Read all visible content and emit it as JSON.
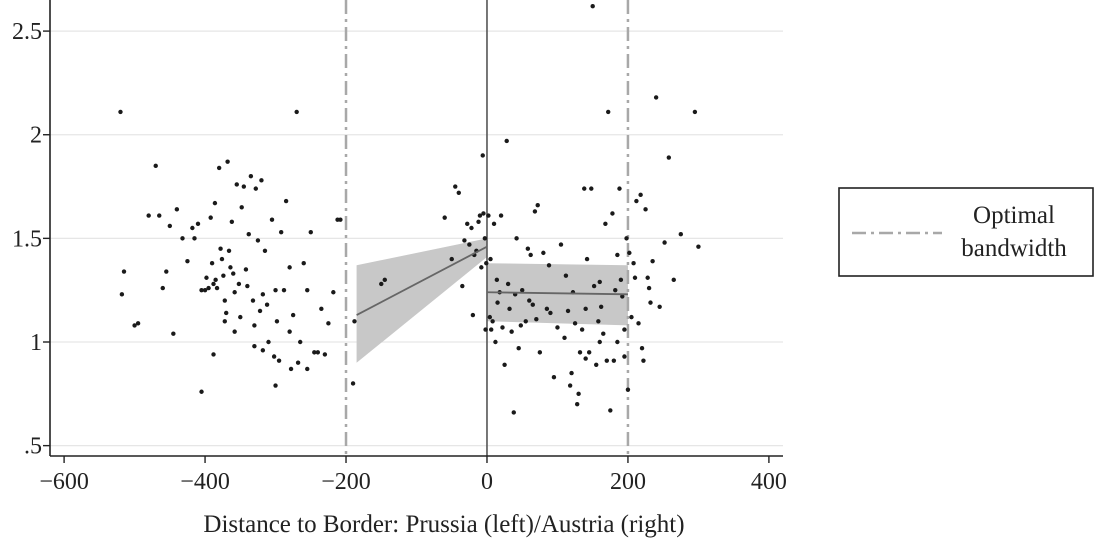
{
  "chart_data": {
    "type": "scatter",
    "title": "",
    "xlabel": "Distance to Border: Prussia (left)/Austria (right)",
    "ylabel": "",
    "xlim": [
      -620,
      420
    ],
    "ylim": [
      0.45,
      2.65
    ],
    "x_ticks": [
      -600,
      -400,
      -200,
      0,
      200,
      400
    ],
    "x_tick_labels": [
      "−600",
      "−400",
      "−200",
      "0",
      "200",
      "400"
    ],
    "y_ticks": [
      0.5,
      1,
      1.5,
      2,
      2.5
    ],
    "y_tick_labels": [
      ".5",
      "1",
      "1.5",
      "2",
      "2.5"
    ],
    "grid": "horizontal",
    "legend": {
      "placement": "right",
      "entries": [
        {
          "label_line1": "Optimal",
          "label_line2": "bandwidth",
          "style": "dash-dot"
        }
      ]
    },
    "bandwidth_lines": [
      -200,
      200
    ],
    "border_line": 0,
    "fits": [
      {
        "side": "left",
        "x": [
          -185,
          0
        ],
        "y": [
          1.13,
          1.46
        ],
        "ci_lower": [
          0.9,
          1.41
        ],
        "ci_upper": [
          1.37,
          1.5
        ]
      },
      {
        "side": "right",
        "x": [
          0,
          200
        ],
        "y": [
          1.24,
          1.23
        ],
        "ci_lower": [
          1.1,
          1.08
        ],
        "ci_upper": [
          1.38,
          1.37
        ]
      }
    ],
    "points": [
      [
        -520,
        2.11
      ],
      [
        -515,
        1.34
      ],
      [
        -518,
        1.23
      ],
      [
        -500,
        1.08
      ],
      [
        -495,
        1.09
      ],
      [
        -480,
        1.61
      ],
      [
        -470,
        1.85
      ],
      [
        -465,
        1.61
      ],
      [
        -460,
        1.26
      ],
      [
        -455,
        1.34
      ],
      [
        -450,
        1.56
      ],
      [
        -445,
        1.04
      ],
      [
        -440,
        1.64
      ],
      [
        -432,
        1.5
      ],
      [
        -425,
        1.39
      ],
      [
        -418,
        1.55
      ],
      [
        -415,
        1.5
      ],
      [
        -410,
        1.57
      ],
      [
        -405,
        1.25
      ],
      [
        -400,
        1.25
      ],
      [
        -398,
        1.31
      ],
      [
        -395,
        1.26
      ],
      [
        -392,
        1.6
      ],
      [
        -390,
        1.38
      ],
      [
        -388,
        1.28
      ],
      [
        -386,
        1.67
      ],
      [
        -385,
        1.3
      ],
      [
        -383,
        1.26
      ],
      [
        -380,
        1.84
      ],
      [
        -378,
        1.45
      ],
      [
        -376,
        1.4
      ],
      [
        -374,
        1.32
      ],
      [
        -372,
        1.2
      ],
      [
        -370,
        1.14
      ],
      [
        -368,
        1.87
      ],
      [
        -366,
        1.44
      ],
      [
        -364,
        1.36
      ],
      [
        -362,
        1.58
      ],
      [
        -360,
        1.33
      ],
      [
        -358,
        1.24
      ],
      [
        -355,
        1.76
      ],
      [
        -352,
        1.28
      ],
      [
        -350,
        1.12
      ],
      [
        -348,
        1.65
      ],
      [
        -345,
        1.75
      ],
      [
        -342,
        1.35
      ],
      [
        -340,
        1.27
      ],
      [
        -338,
        1.52
      ],
      [
        -335,
        1.8
      ],
      [
        -332,
        1.2
      ],
      [
        -330,
        1.08
      ],
      [
        -328,
        1.74
      ],
      [
        -325,
        1.49
      ],
      [
        -322,
        1.15
      ],
      [
        -320,
        1.78
      ],
      [
        -318,
        1.23
      ],
      [
        -315,
        1.44
      ],
      [
        -312,
        1.18
      ],
      [
        -310,
        1.0
      ],
      [
        -305,
        1.59
      ],
      [
        -302,
        0.93
      ],
      [
        -300,
        1.25
      ],
      [
        -298,
        1.1
      ],
      [
        -295,
        0.91
      ],
      [
        -292,
        1.53
      ],
      [
        -288,
        1.25
      ],
      [
        -285,
        1.68
      ],
      [
        -280,
        1.36
      ],
      [
        -278,
        0.87
      ],
      [
        -275,
        1.13
      ],
      [
        -270,
        2.11
      ],
      [
        -268,
        0.9
      ],
      [
        -265,
        1.0
      ],
      [
        -260,
        1.38
      ],
      [
        -255,
        0.87
      ],
      [
        -250,
        1.53
      ],
      [
        -245,
        0.95
      ],
      [
        -240,
        0.95
      ],
      [
        -235,
        1.16
      ],
      [
        -230,
        0.94
      ],
      [
        -225,
        1.09
      ],
      [
        -218,
        1.24
      ],
      [
        -212,
        1.59
      ],
      [
        -208,
        1.59
      ],
      [
        -405,
        0.76
      ],
      [
        -388,
        0.94
      ],
      [
        -372,
        1.1
      ],
      [
        -358,
        1.05
      ],
      [
        -330,
        0.98
      ],
      [
        -318,
        0.96
      ],
      [
        -300,
        0.79
      ],
      [
        -280,
        1.05
      ],
      [
        -255,
        1.25
      ],
      [
        -190,
        0.8
      ],
      [
        -188,
        1.1
      ],
      [
        -150,
        1.28
      ],
      [
        -145,
        1.3
      ],
      [
        -60,
        1.6
      ],
      [
        -50,
        1.4
      ],
      [
        -45,
        1.75
      ],
      [
        -40,
        1.72
      ],
      [
        -35,
        1.27
      ],
      [
        -32,
        1.49
      ],
      [
        -28,
        1.57
      ],
      [
        -25,
        1.47
      ],
      [
        -22,
        1.55
      ],
      [
        -20,
        1.13
      ],
      [
        -18,
        1.42
      ],
      [
        -15,
        1.44
      ],
      [
        -12,
        1.58
      ],
      [
        -10,
        1.61
      ],
      [
        -8,
        1.36
      ],
      [
        -6,
        1.9
      ],
      [
        -5,
        1.62
      ],
      [
        -3,
        1.5
      ],
      [
        -2,
        1.06
      ],
      [
        -1,
        1.38
      ],
      [
        2,
        1.61
      ],
      [
        4,
        1.12
      ],
      [
        5,
        1.4
      ],
      [
        6,
        1.06
      ],
      [
        8,
        1.1
      ],
      [
        10,
        1.57
      ],
      [
        12,
        1.0
      ],
      [
        14,
        1.3
      ],
      [
        15,
        1.19
      ],
      [
        18,
        1.24
      ],
      [
        20,
        1.61
      ],
      [
        22,
        1.07
      ],
      [
        25,
        0.89
      ],
      [
        28,
        1.97
      ],
      [
        30,
        1.28
      ],
      [
        32,
        1.16
      ],
      [
        35,
        1.05
      ],
      [
        38,
        0.66
      ],
      [
        40,
        1.23
      ],
      [
        42,
        1.5
      ],
      [
        45,
        0.97
      ],
      [
        48,
        1.08
      ],
      [
        50,
        1.25
      ],
      [
        55,
        1.1
      ],
      [
        60,
        1.2
      ],
      [
        62,
        1.42
      ],
      [
        65,
        1.18
      ],
      [
        68,
        1.63
      ],
      [
        70,
        1.11
      ],
      [
        72,
        1.66
      ],
      [
        75,
        0.95
      ],
      [
        80,
        1.43
      ],
      [
        85,
        1.16
      ],
      [
        90,
        1.14
      ],
      [
        95,
        0.83
      ],
      [
        100,
        1.07
      ],
      [
        105,
        1.47
      ],
      [
        110,
        1.02
      ],
      [
        115,
        1.15
      ],
      [
        118,
        0.79
      ],
      [
        120,
        0.85
      ],
      [
        122,
        1.24
      ],
      [
        125,
        1.09
      ],
      [
        128,
        0.7
      ],
      [
        130,
        0.75
      ],
      [
        132,
        0.95
      ],
      [
        135,
        1.06
      ],
      [
        138,
        1.74
      ],
      [
        140,
        0.92
      ],
      [
        142,
        1.4
      ],
      [
        145,
        0.95
      ],
      [
        148,
        1.74
      ],
      [
        150,
        2.62
      ],
      [
        152,
        1.27
      ],
      [
        155,
        0.89
      ],
      [
        158,
        1.1
      ],
      [
        160,
        1.0
      ],
      [
        162,
        1.17
      ],
      [
        165,
        1.04
      ],
      [
        168,
        1.57
      ],
      [
        170,
        0.91
      ],
      [
        172,
        2.11
      ],
      [
        175,
        0.67
      ],
      [
        178,
        1.62
      ],
      [
        180,
        0.91
      ],
      [
        182,
        1.25
      ],
      [
        185,
        1.0
      ],
      [
        188,
        1.74
      ],
      [
        190,
        1.3
      ],
      [
        192,
        1.22
      ],
      [
        195,
        0.93
      ],
      [
        198,
        1.5
      ],
      [
        200,
        0.77
      ],
      [
        202,
        1.43
      ],
      [
        205,
        1.12
      ],
      [
        208,
        1.38
      ],
      [
        210,
        1.31
      ],
      [
        215,
        1.09
      ],
      [
        218,
        1.71
      ],
      [
        220,
        0.97
      ],
      [
        222,
        0.91
      ],
      [
        225,
        1.64
      ],
      [
        228,
        1.31
      ],
      [
        232,
        1.19
      ],
      [
        235,
        1.39
      ],
      [
        240,
        2.18
      ],
      [
        245,
        1.17
      ],
      [
        252,
        1.48
      ],
      [
        258,
        1.89
      ],
      [
        265,
        1.3
      ],
      [
        275,
        1.52
      ],
      [
        295,
        2.11
      ],
      [
        300,
        1.46
      ],
      [
        230,
        1.26
      ],
      [
        212,
        1.68
      ],
      [
        195,
        1.06
      ],
      [
        185,
        1.42
      ],
      [
        160,
        1.29
      ],
      [
        140,
        1.16
      ],
      [
        112,
        1.32
      ],
      [
        88,
        1.37
      ],
      [
        58,
        1.45
      ]
    ]
  }
}
